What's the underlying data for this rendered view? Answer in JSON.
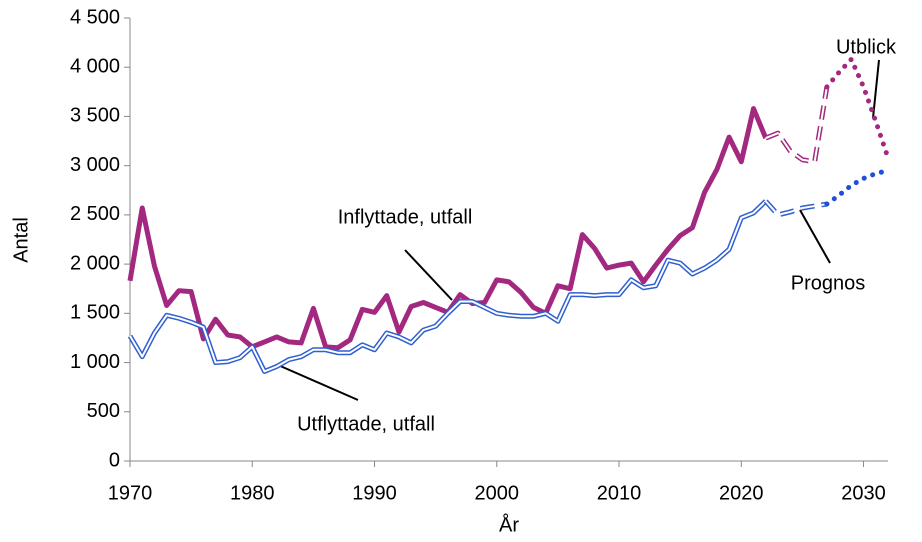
{
  "chart_data": {
    "type": "line",
    "xlabel": "År",
    "ylabel": "Antal",
    "x": [
      1970,
      1971,
      1972,
      1973,
      1974,
      1975,
      1976,
      1977,
      1978,
      1979,
      1980,
      1981,
      1982,
      1983,
      1984,
      1985,
      1986,
      1987,
      1988,
      1989,
      1990,
      1991,
      1992,
      1993,
      1994,
      1995,
      1996,
      1997,
      1998,
      1999,
      2000,
      2001,
      2002,
      2003,
      2004,
      2005,
      2006,
      2007,
      2008,
      2009,
      2010,
      2011,
      2012,
      2013,
      2014,
      2015,
      2016,
      2017,
      2018,
      2019,
      2020,
      2021,
      2022,
      2023,
      2024,
      2025,
      2026,
      2027,
      2028,
      2029,
      2030,
      2031,
      2032
    ],
    "series": [
      {
        "name": "Inflyttade, utfall",
        "style": "solid",
        "lines": [
          {
            "color": "#a3287f",
            "values": [
              1830,
              2570,
              1980,
              1580,
              1730,
              1720,
              1240,
              1440,
              1280,
              1260,
              1160,
              1210,
              1260,
              1210,
              1200,
              1550,
              1160,
              1150,
              1230,
              1540,
              1510,
              1680,
              1310,
              1570,
              1610,
              1560,
              1510,
              1690,
              1600,
              1610,
              1840,
              1820,
              1710,
              1560,
              1500,
              1780,
              1750,
              2300,
              2160,
              1960,
              1990,
              2010,
              1820,
              1990,
              2150,
              2290,
              2370,
              2730,
              2960,
              3290,
              3040,
              3580,
              3280,
              null,
              null,
              null,
              null,
              null,
              null,
              null,
              null,
              null,
              null
            ]
          }
        ]
      },
      {
        "name": "Utflyttade, utfall",
        "style": "double",
        "lines": [
          {
            "color": "#2f5fd0",
            "values": [
              1270,
              1060,
              1300,
              1480,
              1450,
              1410,
              1360,
              1000,
              1010,
              1050,
              1160,
              910,
              960,
              1030,
              1060,
              1130,
              1130,
              1100,
              1100,
              1180,
              1130,
              1300,
              1260,
              1200,
              1330,
              1370,
              1500,
              1620,
              1620,
              1560,
              1500,
              1480,
              1470,
              1470,
              1500,
              1420,
              1690,
              1690,
              1680,
              1690,
              1690,
              1840,
              1760,
              1780,
              2040,
              2010,
              1900,
              1960,
              2040,
              2150,
              2470,
              2520,
              2640,
              null,
              null,
              null,
              null,
              null,
              null,
              null,
              null,
              null,
              null
            ]
          }
        ]
      },
      {
        "name": "Prognos",
        "style": "dashed",
        "lines": [
          {
            "color": "#a3287f",
            "values": [
              null,
              null,
              null,
              null,
              null,
              null,
              null,
              null,
              null,
              null,
              null,
              null,
              null,
              null,
              null,
              null,
              null,
              null,
              null,
              null,
              null,
              null,
              null,
              null,
              null,
              null,
              null,
              null,
              null,
              null,
              null,
              null,
              null,
              null,
              null,
              null,
              null,
              null,
              null,
              null,
              null,
              null,
              null,
              null,
              null,
              null,
              null,
              null,
              null,
              null,
              null,
              null,
              3280,
              3330,
              3150,
              3060,
              3040,
              3800,
              null,
              null,
              null,
              null,
              null
            ]
          },
          {
            "color": "#2f5fd0",
            "values": [
              null,
              null,
              null,
              null,
              null,
              null,
              null,
              null,
              null,
              null,
              null,
              null,
              null,
              null,
              null,
              null,
              null,
              null,
              null,
              null,
              null,
              null,
              null,
              null,
              null,
              null,
              null,
              null,
              null,
              null,
              null,
              null,
              null,
              null,
              null,
              null,
              null,
              null,
              null,
              null,
              null,
              null,
              null,
              null,
              null,
              null,
              null,
              null,
              null,
              null,
              null,
              null,
              2640,
              2500,
              2530,
              2570,
              2590,
              2610,
              null,
              null,
              null,
              null,
              null
            ]
          }
        ]
      },
      {
        "name": "Utblick",
        "style": "dotted",
        "lines": [
          {
            "color": "#a3287f",
            "values": [
              null,
              null,
              null,
              null,
              null,
              null,
              null,
              null,
              null,
              null,
              null,
              null,
              null,
              null,
              null,
              null,
              null,
              null,
              null,
              null,
              null,
              null,
              null,
              null,
              null,
              null,
              null,
              null,
              null,
              null,
              null,
              null,
              null,
              null,
              null,
              null,
              null,
              null,
              null,
              null,
              null,
              null,
              null,
              null,
              null,
              null,
              null,
              null,
              null,
              null,
              null,
              null,
              null,
              null,
              null,
              null,
              null,
              3800,
              3950,
              4080,
              3800,
              3450,
              3080
            ]
          },
          {
            "color": "#1f4fd8",
            "values": [
              null,
              null,
              null,
              null,
              null,
              null,
              null,
              null,
              null,
              null,
              null,
              null,
              null,
              null,
              null,
              null,
              null,
              null,
              null,
              null,
              null,
              null,
              null,
              null,
              null,
              null,
              null,
              null,
              null,
              null,
              null,
              null,
              null,
              null,
              null,
              null,
              null,
              null,
              null,
              null,
              null,
              null,
              null,
              null,
              null,
              null,
              null,
              null,
              null,
              null,
              null,
              null,
              null,
              null,
              null,
              null,
              null,
              2610,
              2700,
              2800,
              2870,
              2920,
              2950
            ]
          }
        ]
      }
    ],
    "xlim": [
      1970,
      2032
    ],
    "xticks": [
      1970,
      1980,
      1990,
      2000,
      2010,
      2020,
      2030
    ],
    "ylim": [
      0,
      4500
    ],
    "yticks": [
      0,
      500,
      {
        "value": 1000,
        "label": "1 000"
      },
      {
        "value": 1500,
        "label": "1 500"
      },
      {
        "value": 2000,
        "label": "2 000"
      },
      {
        "value": 2500,
        "label": "2 500"
      },
      {
        "value": 3000,
        "label": "3 000"
      },
      {
        "value": 3500,
        "label": "3 500"
      },
      {
        "value": 4000,
        "label": "4 000"
      },
      {
        "value": 4500,
        "label": "4 500"
      }
    ],
    "grid": false
  }
}
